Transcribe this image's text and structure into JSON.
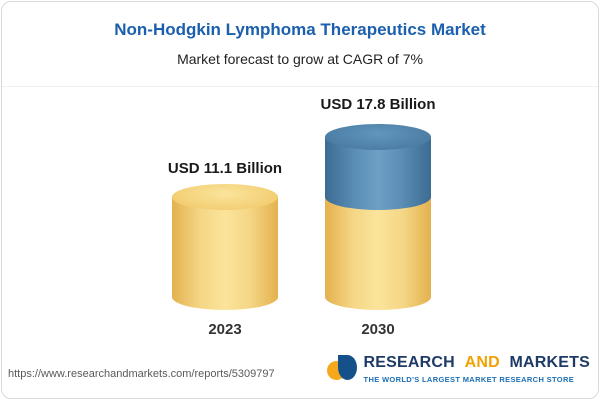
{
  "header": {
    "title": "Non-Hodgkin Lymphoma Therapeutics Market",
    "subtitle": "Market forecast to grow at CAGR of 7%"
  },
  "chart_data": {
    "type": "bar",
    "bar_style": "3d-cylinder",
    "title": "Non-Hodgkin Lymphoma Therapeutics Market",
    "subtitle": "Market forecast to grow at CAGR of 7%",
    "categories": [
      "2023",
      "2030"
    ],
    "values": [
      11.1,
      17.8
    ],
    "value_labels": [
      "USD 11.1 Billion",
      "USD 17.8 Billion"
    ],
    "unit": "USD Billion",
    "cagr": "7%",
    "ylim": [
      0,
      20
    ],
    "grid": false,
    "legend": "none",
    "colors": {
      "base_segment": "#f3cf74",
      "growth_segment": "#4c7ea6",
      "title": "#1b5fae"
    }
  },
  "footer": {
    "url": "https://www.researchandmarkets.com/reports/5309797",
    "logo": {
      "word1": "RESEARCH",
      "word2": "AND",
      "word3": "MARKETS",
      "tagline": "THE WORLD'S LARGEST MARKET RESEARCH STORE"
    }
  }
}
